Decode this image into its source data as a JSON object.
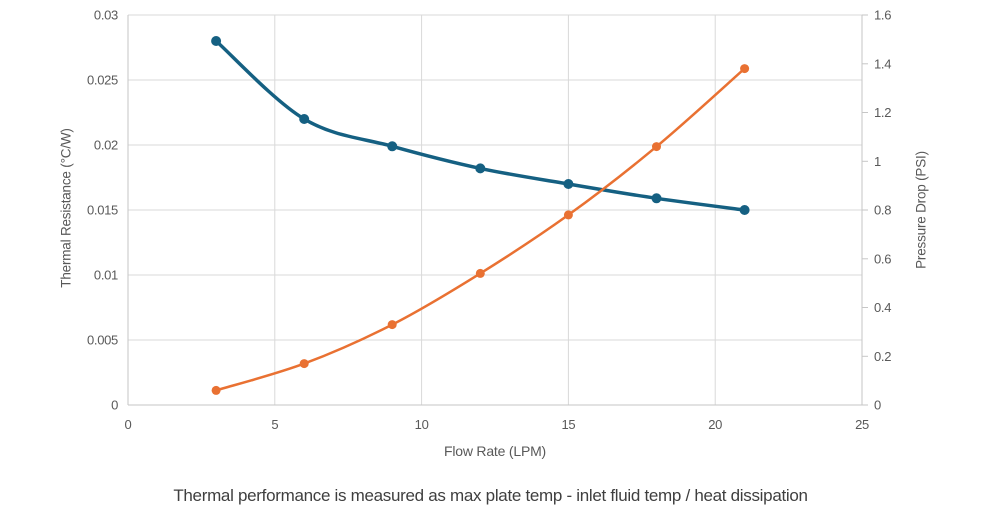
{
  "page": {
    "background_color": "#ffffff"
  },
  "caption": "Thermal performance is measured as max plate temp - inlet fluid temp / heat dissipation",
  "chart_data": {
    "type": "line",
    "title": "",
    "xlabel": "Flow Rate (LPM)",
    "ylabel_left": "Thermal Resistance (°C/W)",
    "ylabel_right": "Pressure Drop (PSI)",
    "x": [
      3,
      6,
      9,
      12,
      15,
      18,
      21
    ],
    "series": [
      {
        "name": "Thermal Resistance",
        "axis": "left",
        "color": "#156082",
        "line_width": 3.5,
        "marker_radius": 5,
        "values": [
          0.028,
          0.022,
          0.0199,
          0.0182,
          0.017,
          0.0159,
          0.015
        ]
      },
      {
        "name": "Pressure Drop",
        "axis": "right",
        "color": "#E97132",
        "line_width": 2.5,
        "marker_radius": 4.5,
        "values": [
          0.06,
          0.17,
          0.33,
          0.54,
          0.78,
          1.06,
          1.38
        ]
      }
    ],
    "xlim": [
      0,
      25
    ],
    "ylim_left": [
      0,
      0.03
    ],
    "ylim_right": [
      0,
      1.6
    ],
    "xticks": {
      "values": [
        0,
        5,
        10,
        15,
        20,
        25
      ],
      "labels": [
        "0",
        "5",
        "10",
        "15",
        "20",
        "25"
      ]
    },
    "yticks_left": {
      "values": [
        0,
        0.005,
        0.01,
        0.015,
        0.02,
        0.025,
        0.03
      ],
      "labels": [
        "0",
        "0.005",
        "0.01",
        "0.015",
        "0.02",
        "0.025",
        "0.03"
      ]
    },
    "yticks_right": {
      "values": [
        0,
        0.2,
        0.4,
        0.6,
        0.8,
        1,
        1.2,
        1.4,
        1.6
      ],
      "labels": [
        "0",
        "0.2",
        "0.4",
        "0.6",
        "0.8",
        "1",
        "1.2",
        "1.4",
        "1.6"
      ]
    },
    "grid": {
      "horizontal": true,
      "vertical": true,
      "color": "#D9D9D9"
    },
    "axis_color": "#C6C6C6",
    "tick_text_color": "#595959",
    "legend": "none",
    "smooth": true,
    "marker": "circle"
  }
}
